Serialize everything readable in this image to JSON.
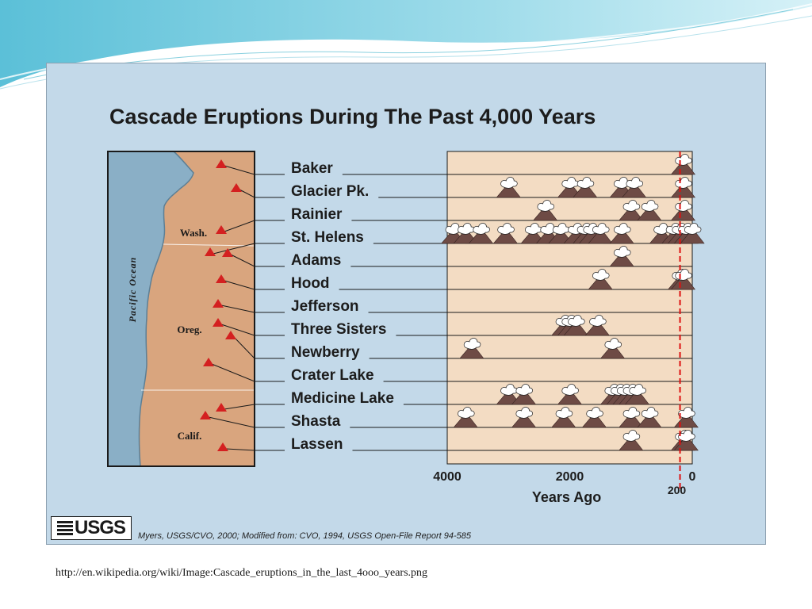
{
  "slide": {
    "source_url": "http://en.wikipedia.org/wiki/Image:Cascade_eruptions_in_the_last_4ooo_years.png",
    "credit": "Myers, USGS/CVO, 2000; Modified from: CVO, 1994, USGS Open-File Report 94-585",
    "logo_text": "USGS",
    "colors": {
      "panel_bg": "#c3d9e9",
      "land": "#d9a57e",
      "ocean": "#8aafc6",
      "timeline_bg": "#f3dcc3",
      "volcano": "#6e4b45",
      "ash": "#ffffff",
      "marker": "#d42020",
      "reference_line": "#dd1111"
    }
  },
  "chart_data": {
    "type": "scatter",
    "title": "Cascade Eruptions During The Past 4,000 Years",
    "xlabel": "Years Ago",
    "x_axis": {
      "reversed": true,
      "xlim": [
        4000,
        0
      ],
      "ticks": [
        4000,
        2000,
        0
      ]
    },
    "reference_line": {
      "x": 200,
      "label": "200"
    },
    "map_labels": {
      "ocean": "Pacific Ocean",
      "states": [
        "Wash.",
        "Oreg.",
        "Calif."
      ]
    },
    "series": [
      {
        "name": "Baker",
        "eruptions": [
          150
        ]
      },
      {
        "name": "Glacier Pk.",
        "eruptions": [
          3000,
          2000,
          1750,
          1150,
          950,
          150
        ]
      },
      {
        "name": "Rainier",
        "eruptions": [
          2400,
          1000,
          700,
          150
        ]
      },
      {
        "name": "St. Helens",
        "eruptions": [
          3900,
          3700,
          3450,
          3050,
          2600,
          2350,
          2150,
          1900,
          1750,
          1650,
          1500,
          1150,
          500,
          300,
          200,
          100,
          0
        ]
      },
      {
        "name": "Adams",
        "eruptions": [
          1150
        ]
      },
      {
        "name": "Hood",
        "eruptions": [
          1500,
          200,
          150
        ]
      },
      {
        "name": "Jefferson",
        "eruptions": []
      },
      {
        "name": "Three Sisters",
        "eruptions": [
          2100,
          2000,
          1900,
          1550
        ]
      },
      {
        "name": "Newberry",
        "eruptions": [
          3600,
          1300
        ]
      },
      {
        "name": "Crater Lake",
        "eruptions": []
      },
      {
        "name": "Medicine Lake",
        "eruptions": [
          3000,
          2750,
          2000,
          1300,
          1200,
          1100,
          1000,
          900
        ]
      },
      {
        "name": "Shasta",
        "eruptions": [
          3700,
          2750,
          2100,
          1600,
          1000,
          700,
          100
        ]
      },
      {
        "name": "Lassen",
        "eruptions": [
          1000,
          150,
          100
        ]
      }
    ]
  }
}
